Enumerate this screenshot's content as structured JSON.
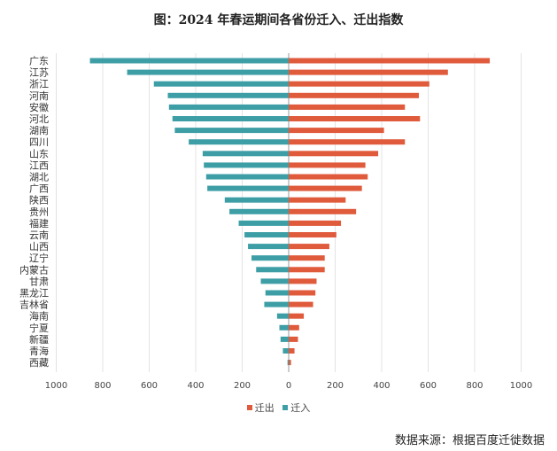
{
  "title": "图：2024 年春运期间各省份迁入、迁出指数",
  "source": "数据来源：根据百度迁徙数据",
  "colors": {
    "out": "#E05A3C",
    "in": "#3E9EA6",
    "grid": "#e3e3e3",
    "axis": "#999999"
  },
  "chart_data": {
    "type": "bar",
    "orientation": "horizontal-diverging",
    "categories": [
      "广东",
      "江苏",
      "浙江",
      "河南",
      "安徽",
      "河北",
      "湖南",
      "四川",
      "山东",
      "江西",
      "湖北",
      "广西",
      "陕西",
      "贵州",
      "福建",
      "云南",
      "山西",
      "辽宁",
      "内蒙古",
      "甘肃",
      "黑龙江",
      "吉林省",
      "海南",
      "宁夏",
      "新疆",
      "青海",
      "西藏"
    ],
    "series": [
      {
        "name": "迁出",
        "side": "right",
        "values": [
          865,
          685,
          605,
          560,
          500,
          565,
          410,
          500,
          385,
          330,
          340,
          315,
          245,
          290,
          225,
          205,
          175,
          155,
          155,
          120,
          115,
          105,
          65,
          45,
          40,
          25,
          10
        ]
      },
      {
        "name": "迁入",
        "side": "left",
        "values": [
          855,
          695,
          580,
          520,
          515,
          500,
          490,
          430,
          370,
          365,
          355,
          350,
          275,
          255,
          215,
          190,
          175,
          160,
          140,
          120,
          100,
          105,
          50,
          40,
          35,
          25,
          5
        ]
      }
    ],
    "xticks": [
      "1000",
      "800",
      "600",
      "400",
      "200",
      "0",
      "200",
      "400",
      "600",
      "800",
      "1000"
    ],
    "xlim": [
      -1000,
      1000
    ],
    "grid": true,
    "legend_position": "bottom-center"
  }
}
